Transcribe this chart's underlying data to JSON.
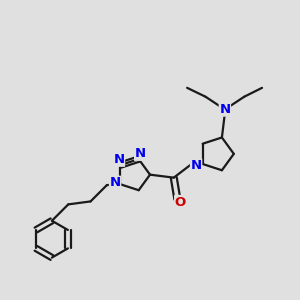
{
  "background_color": "#e0e0e0",
  "bond_color": "#1a1a1a",
  "nitrogen_color": "#0000ee",
  "oxygen_color": "#cc0000",
  "bond_lw": 1.6,
  "figsize": [
    3.0,
    3.0
  ],
  "dpi": 100,
  "xlim": [
    0,
    10
  ],
  "ylim": [
    0,
    10
  ]
}
